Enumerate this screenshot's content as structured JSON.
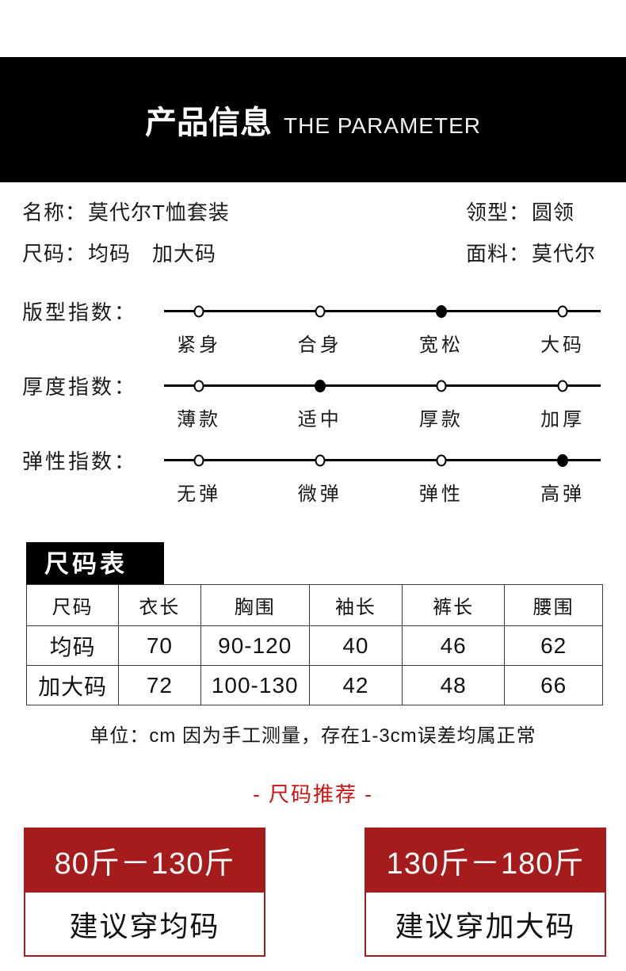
{
  "banner": {
    "title_cn": "产品信息",
    "title_en": "THE PARAMETER"
  },
  "info": {
    "cells": [
      {
        "label": "名称：",
        "value": "莫代尔T恤套装"
      },
      {
        "label": "领型：",
        "value": "圆领"
      },
      {
        "label": "尺码：",
        "value": "均码　加大码"
      },
      {
        "label": "面料：",
        "value": "莫代尔"
      }
    ]
  },
  "sliders": [
    {
      "title": "版型指数：",
      "options": [
        "紧身",
        "合身",
        "宽松",
        "大码"
      ],
      "selected_index": 2,
      "selected_label": "宽松"
    },
    {
      "title": "厚度指数：",
      "options": [
        "薄款",
        "适中",
        "厚款",
        "加厚"
      ],
      "selected_index": 1,
      "selected_label": "适中"
    },
    {
      "title": "弹性指数：",
      "options": [
        "无弹",
        "微弹",
        "弹性",
        "高弹"
      ],
      "selected_index": 3,
      "selected_label": "高弹"
    }
  ],
  "size_table": {
    "tag": "尺码表",
    "headers": [
      "尺码",
      "衣长",
      "胸围",
      "袖长",
      "裤长",
      "腰围"
    ],
    "rows": [
      [
        "均码",
        "70",
        "90-120",
        "40",
        "46",
        "62"
      ],
      [
        "加大码",
        "72",
        "100-130",
        "42",
        "48",
        "66"
      ]
    ],
    "note": "单位：cm 因为手工测量，存在1-3cm误差均属正常"
  },
  "recommendation": {
    "heading": "- 尺码推荐 -",
    "cards": [
      {
        "weight_range": "80斤－130斤",
        "advice": "建议穿均码"
      },
      {
        "weight_range": "130斤－180斤",
        "advice": "建议穿加大码"
      }
    ]
  },
  "colors": {
    "banner_bg": "#000000",
    "card_red": "#A61B1B",
    "heading_red": "#CE1212",
    "table_border": "#3a3a3a"
  }
}
